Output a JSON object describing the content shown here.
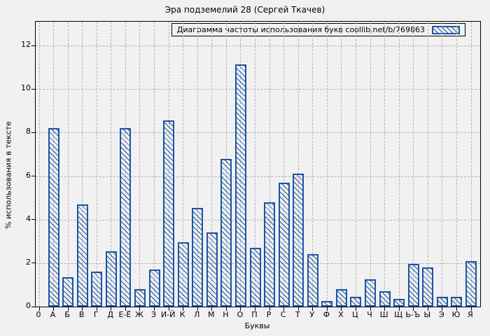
{
  "chart_data": {
    "type": "bar",
    "title": "Эра подземелий 28 (Сергей Ткачев)",
    "legend_label": "Диаграмма частоты использования букв coollib.net/b/769863",
    "legend_position": "top-right",
    "xlabel": "Буквы",
    "ylabel": "% использования в тексте",
    "origin_tick_label": "0",
    "categories": [
      "А",
      "Б",
      "В",
      "Г",
      "Д",
      "Е-Ё",
      "Ж",
      "З",
      "И-Й",
      "К",
      "Л",
      "М",
      "Н",
      "О",
      "П",
      "Р",
      "С",
      "Т",
      "У",
      "Ф",
      "Х",
      "Ц",
      "Ч",
      "Ш",
      "Щ",
      "Ь-Ъ",
      "Ы",
      "Э",
      "Ю",
      "Я"
    ],
    "values": [
      8.2,
      1.35,
      4.7,
      1.6,
      2.55,
      8.2,
      0.8,
      1.7,
      8.55,
      2.95,
      4.55,
      3.4,
      6.8,
      11.15,
      2.7,
      4.8,
      5.7,
      6.1,
      2.4,
      0.25,
      0.8,
      0.45,
      1.25,
      0.7,
      0.35,
      1.95,
      1.8,
      0.45,
      0.45,
      2.1
    ],
    "yticks": [
      0,
      2,
      4,
      6,
      8,
      10,
      12
    ],
    "ylim": [
      0,
      13.1
    ],
    "grid": true,
    "hatch_pattern": "diagonal",
    "bar_color": "#1b54a5",
    "grid_color": "#b3b3b3",
    "background_color": "#f1f1f1"
  }
}
